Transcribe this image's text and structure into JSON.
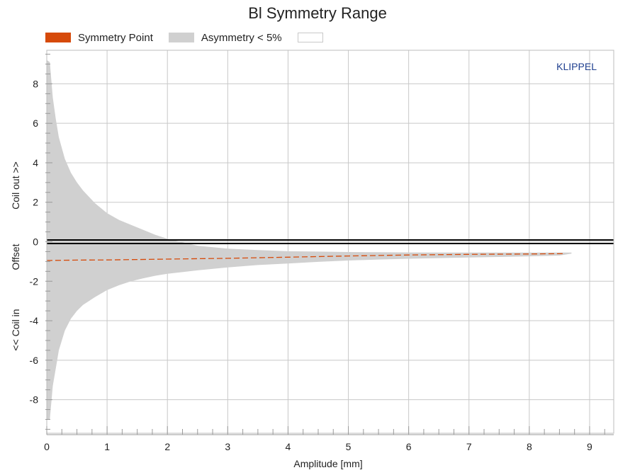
{
  "chart_data": {
    "type": "area",
    "title": "Bl Symmetry Range",
    "xlabel": "Amplitude [mm]",
    "ylabel": {
      "top": "Coil out >>",
      "middle": "Offset",
      "bottom": "<< Coil in"
    },
    "xlim": [
      0,
      9.4
    ],
    "ylim": [
      -9.7,
      9.7
    ],
    "xticks": [
      0,
      1,
      2,
      3,
      4,
      5,
      6,
      7,
      8,
      9
    ],
    "yticks": [
      -8,
      -6,
      -4,
      -2,
      0,
      2,
      4,
      6,
      8
    ],
    "grid": true,
    "legend": {
      "placement": "top",
      "entries": [
        {
          "label": "Symmetry Point",
          "color": "#d64a0a"
        },
        {
          "label": "Asymmetry < 5%",
          "color": "#d0d0d0"
        },
        {
          "label": "",
          "color": "#ffffff"
        }
      ]
    },
    "watermark": "KLIPPEL",
    "series": [
      {
        "name": "Asymmetry < 5%",
        "x": [
          0,
          0.05,
          0.1,
          0.15,
          0.2,
          0.3,
          0.4,
          0.5,
          0.6,
          0.8,
          1.0,
          1.2,
          1.4,
          1.6,
          1.8,
          2.0,
          2.5,
          3.0,
          3.5,
          4.0,
          4.5,
          5.0,
          5.5,
          6.0,
          6.5,
          7.0,
          7.5,
          8.0,
          8.5,
          8.7
        ],
        "upper": [
          9.2,
          9.1,
          7.3,
          6.2,
          5.3,
          4.2,
          3.5,
          3.0,
          2.6,
          1.95,
          1.45,
          1.1,
          0.85,
          0.6,
          0.35,
          0.15,
          -0.2,
          -0.35,
          -0.42,
          -0.48,
          -0.5,
          -0.52,
          -0.53,
          -0.54,
          -0.55,
          -0.55,
          -0.55,
          -0.55,
          -0.55,
          -0.55
        ],
        "lower": [
          -9.0,
          -9.0,
          -7.3,
          -6.4,
          -5.5,
          -4.5,
          -3.9,
          -3.5,
          -3.2,
          -2.8,
          -2.45,
          -2.2,
          -2.0,
          -1.85,
          -1.72,
          -1.62,
          -1.45,
          -1.3,
          -1.18,
          -1.1,
          -1.02,
          -0.95,
          -0.9,
          -0.86,
          -0.83,
          -0.8,
          -0.77,
          -0.74,
          -0.7,
          -0.6
        ]
      },
      {
        "name": "Symmetry Point",
        "x": [
          0.0,
          0.5,
          1.0,
          1.5,
          2.0,
          3.0,
          4.0,
          5.0,
          6.0,
          7.0,
          8.0,
          8.6
        ],
        "y": [
          -0.95,
          -0.93,
          -0.92,
          -0.9,
          -0.88,
          -0.84,
          -0.78,
          -0.72,
          -0.67,
          -0.64,
          -0.62,
          -0.6
        ]
      }
    ],
    "reference_line": {
      "y": 0,
      "color": "#000000"
    }
  }
}
